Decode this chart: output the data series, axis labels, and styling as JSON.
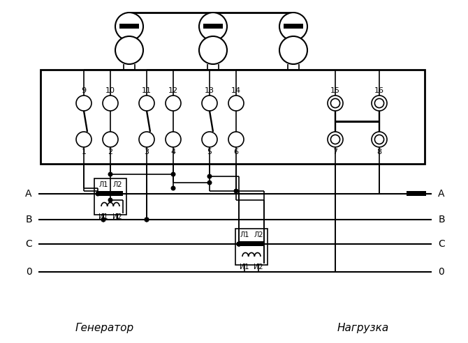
{
  "fig_width": 6.7,
  "fig_height": 4.92,
  "dpi": 100,
  "bg_color": "#ffffff",
  "line_color": "#000000",
  "lw": 1.2,
  "tlw": 2.0,
  "gen_label": "Генератор",
  "load_label": "Нагрузка",
  "L1": "Л1",
  "L2": "Л2",
  "I1": "И1",
  "I2": "И2",
  "phase_A": "A",
  "phase_B": "B",
  "phase_C": "C",
  "phase_0": "0"
}
